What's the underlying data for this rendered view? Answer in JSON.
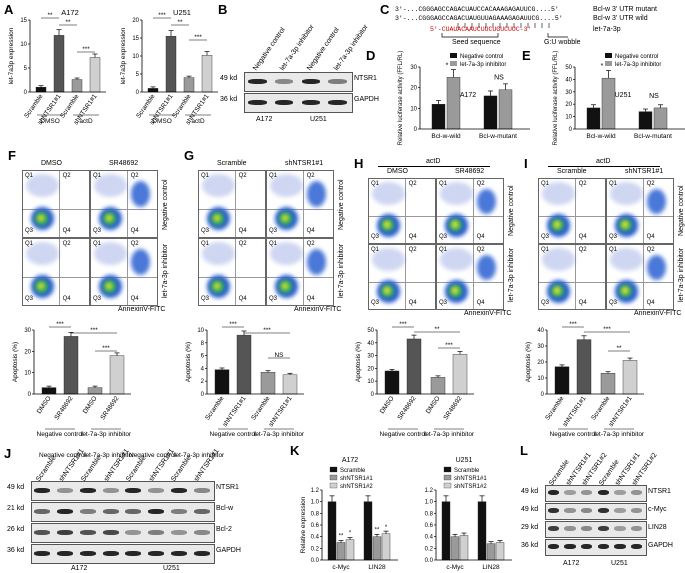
{
  "panels": {
    "A": {
      "letter": "A",
      "cell1": "A172",
      "cell2": "U251",
      "ylabel": "let-7a3p expression",
      "xlabels": [
        "Scramble",
        "shNTSR1#1",
        "Scramble",
        "shNTSR1#1"
      ],
      "groups": [
        "DMSO",
        "actD"
      ],
      "sig1": [
        "**",
        "**",
        "***"
      ],
      "sig2": [
        "***",
        "**",
        "***"
      ],
      "ticks1": [
        "0",
        "5",
        "10",
        "15"
      ],
      "ticks2": [
        "0",
        "5",
        "10",
        "15",
        "20"
      ]
    },
    "B": {
      "letter": "B",
      "lanes": [
        "Negative control",
        "let-7a-3p inhibitor",
        "Negative control",
        "let-7a-3p inhibitor"
      ],
      "rows": [
        "NTSR1",
        "GAPDH"
      ],
      "kd": [
        "49 kd",
        "36 kd"
      ],
      "cells": [
        "A172",
        "U251"
      ]
    },
    "C": {
      "letter": "C",
      "seq1": "3'-...CGGGAGCCAGACUAUCCACAAAGAGAUUCG....5'",
      "lab1": "Bcl-w 3' UTR mutant",
      "seq2": "3'-...CGGGAGCCAGACUAUGUUAGAAAGAGAUUCG....5'",
      "lab2": "Bcl-w 3' UTR wild",
      "seq3": "5'-CUAUACAAUCUUCUGUCUUC-3'",
      "lab3": "let-7a-3p",
      "seed": "Seed sequence",
      "wobble": "G:U wobble"
    },
    "D": {
      "letter": "D",
      "cell": "A172",
      "ylabel": "Relative luciferase activity (FFL/RL)",
      "legend": [
        "Negative control",
        "let-7a-3p inhibitor"
      ],
      "x": [
        "Bcl-w-wild",
        "Bcl-w-mutant"
      ],
      "sig": [
        "*",
        "NS"
      ],
      "ticks": [
        "0",
        "10",
        "20",
        "30"
      ]
    },
    "E": {
      "letter": "E",
      "cell": "U251",
      "ylabel": "Relative luciferase activity (FFL/RL)",
      "legend": [
        "Negative control",
        "let-7a-3p inhibitor"
      ],
      "x": [
        "Bcl-w-wild",
        "Bcl-w-mutant"
      ],
      "sig": [
        "*",
        "NS"
      ],
      "ticks": [
        "0",
        "10",
        "20",
        "30",
        "40",
        "50"
      ]
    },
    "F": {
      "letter": "F",
      "cols": [
        "DMSO",
        "SR48692"
      ],
      "rows": [
        "Negative control",
        "let-7a-3p inhibitor"
      ],
      "axis": "AnnexinV-FITC",
      "ylabel": "Apoptosis (%)",
      "x": [
        "DMSO",
        "SR48692",
        "DMSO",
        "SR48692"
      ],
      "groups": [
        "Negative control",
        "let-7a-3p inhibitor"
      ],
      "sig": [
        "***",
        "***",
        "***"
      ],
      "ticks": [
        "0",
        "10",
        "20",
        "30"
      ]
    },
    "G": {
      "letter": "G",
      "cols": [
        "Scramble",
        "shNTSR1#1"
      ],
      "rows": [
        "Negative control",
        "let-7a-3p inhibitor"
      ],
      "axis": "AnnexinV-FITC",
      "ylabel": "Apoptosis (%)",
      "x": [
        "Scramble",
        "shNTSR1#1",
        "Scramble",
        "shNTSR1#1"
      ],
      "groups": [
        "Negative control",
        "let-7a-3p inhibitor"
      ],
      "sig": [
        "***",
        "***",
        "NS"
      ],
      "ticks": [
        "0",
        "2",
        "4",
        "6",
        "8",
        "10"
      ]
    },
    "H": {
      "letter": "H",
      "top": "actD",
      "cols": [
        "DMSO",
        "SR48692"
      ],
      "rows": [
        "Negative control",
        "let-7a-3p inhibitor"
      ],
      "axis": "AnnexinV-FITC",
      "ylabel": "Apoptosis (%)",
      "x": [
        "DMSO",
        "SR48692",
        "DMSO",
        "SR48692"
      ],
      "groups": [
        "Negative control",
        "let-7a-3p inhibitor"
      ],
      "sig": [
        "***",
        "**",
        "***"
      ],
      "ticks": [
        "0",
        "10",
        "20",
        "30",
        "40",
        "50"
      ]
    },
    "I": {
      "letter": "I",
      "top": "actD",
      "cols": [
        "Scramble",
        "shNTSR1#1"
      ],
      "rows": [
        "Negative control",
        "let-7a-3p inhibitor"
      ],
      "axis": "AnnexinV-FITC",
      "ylabel": "Apoptosis (%)",
      "x": [
        "Scramble",
        "shNTSR1#1",
        "Scramble",
        "shNTSR1#1"
      ],
      "groups": [
        "Negative control",
        "let-7a-3p inhibitor"
      ],
      "sig": [
        "***",
        "***",
        "**"
      ],
      "ticks": [
        "0",
        "10",
        "20",
        "30",
        "40"
      ]
    },
    "J": {
      "letter": "J",
      "groups": [
        "Negative control",
        "let-7a-3p inhibitor",
        "Negative control",
        "let-7a-3p inhibitor"
      ],
      "lanes": [
        "Scramble",
        "shNTSR1#1",
        "Scramble",
        "shNTSR1#1",
        "Scramble",
        "shNTSR1#1",
        "Scramble",
        "shNTSR1#1"
      ],
      "rows": [
        "NTSR1",
        "Bcl-w",
        "Bcl-2",
        "GAPDH"
      ],
      "kd": [
        "49 kd",
        "21 kd",
        "26 kd",
        "36 kd"
      ],
      "cells": [
        "A172",
        "U251"
      ]
    },
    "K": {
      "letter": "K",
      "cell1": "A172",
      "cell2": "U251",
      "ylabel": "Relative expression",
      "legend": [
        "Scramble",
        "shNTSR1#1",
        "shNTSR1#2"
      ],
      "x": [
        "c-Myc",
        "LIN28"
      ],
      "sig": [
        "**",
        "*",
        "**",
        "*"
      ],
      "ticks": [
        "0.0",
        "0.2",
        "0.4",
        "0.6",
        "0.8",
        "1.0",
        "1.2"
      ]
    },
    "L": {
      "letter": "L",
      "lanes": [
        "Scramble",
        "shNTSR1#1",
        "shNTSR1#2",
        "Scramble",
        "shNTSR1#1",
        "shNTSR1#2"
      ],
      "rows": [
        "NTSR1",
        "c-Myc",
        "LIN28",
        "GAPDH"
      ],
      "kd": [
        "49 kd",
        "49 kd",
        "29 kd",
        "36 kd"
      ],
      "cells": [
        "A172",
        "U251"
      ]
    }
  },
  "flow_quadrants": [
    "Q1",
    "Q2",
    "Q3",
    "Q4"
  ],
  "colors": {
    "black": "#111111",
    "dark": "#555555",
    "gray": "#9a9a9a",
    "light": "#d0d0d0"
  },
  "chart_data": [
    {
      "id": "A-A172",
      "type": "bar",
      "title": "A172",
      "categories": [
        "Scramble DMSO",
        "shNTSR1#1 DMSO",
        "Scramble actD",
        "shNTSR1#1 actD"
      ],
      "values": [
        1,
        11.8,
        2.6,
        7.2
      ],
      "ylim": [
        0,
        15
      ],
      "ylabel": "let-7a3p expression"
    },
    {
      "id": "A-U251",
      "type": "bar",
      "title": "U251",
      "categories": [
        "Scramble DMSO",
        "shNTSR1#1 DMSO",
        "Scramble actD",
        "shNTSR1#1 actD"
      ],
      "values": [
        1,
        15.5,
        4,
        10.2
      ],
      "ylim": [
        0,
        20
      ],
      "ylabel": "let-7a3p expression"
    },
    {
      "id": "D",
      "type": "bar",
      "title": "A172",
      "categories": [
        "Bcl-w-wild",
        "Bcl-w-mutant"
      ],
      "series": [
        {
          "name": "Negative control",
          "values": [
            12,
            16
          ]
        },
        {
          "name": "let-7a-3p inhibitor",
          "values": [
            25,
            19
          ]
        }
      ],
      "ylim": [
        0,
        30
      ]
    },
    {
      "id": "E",
      "type": "bar",
      "title": "U251",
      "categories": [
        "Bcl-w-wild",
        "Bcl-w-mutant"
      ],
      "series": [
        {
          "name": "Negative control",
          "values": [
            17,
            14
          ]
        },
        {
          "name": "let-7a-3p inhibitor",
          "values": [
            41,
            17
          ]
        }
      ],
      "ylim": [
        0,
        50
      ]
    },
    {
      "id": "F",
      "type": "bar",
      "categories": [
        "DMSO NC",
        "SR48692 NC",
        "DMSO inh",
        "SR48692 inh"
      ],
      "values": [
        3,
        27,
        3,
        18
      ],
      "ylim": [
        0,
        30
      ],
      "ylabel": "Apoptosis (%)"
    },
    {
      "id": "G",
      "type": "bar",
      "categories": [
        "Scramble NC",
        "shNTSR1#1 NC",
        "Scramble inh",
        "shNTSR1#1 inh"
      ],
      "values": [
        3.8,
        9.2,
        3.4,
        3.0
      ],
      "ylim": [
        0,
        10
      ],
      "ylabel": "Apoptosis (%)"
    },
    {
      "id": "H",
      "type": "bar",
      "categories": [
        "DMSO NC",
        "SR48692 NC",
        "DMSO inh",
        "SR48692 inh"
      ],
      "values": [
        18,
        43,
        13,
        31
      ],
      "ylim": [
        0,
        50
      ],
      "ylabel": "Apoptosis (%)"
    },
    {
      "id": "I",
      "type": "bar",
      "categories": [
        "Scramble NC",
        "shNTSR1#1 NC",
        "Scramble inh",
        "shNTSR1#1 inh"
      ],
      "values": [
        17,
        34,
        13,
        21
      ],
      "ylim": [
        0,
        40
      ],
      "ylabel": "Apoptosis (%)"
    },
    {
      "id": "K-A172",
      "type": "bar",
      "title": "A172",
      "categories": [
        "c-Myc",
        "LIN28"
      ],
      "series": [
        {
          "name": "Scramble",
          "values": [
            1.0,
            1.0
          ]
        },
        {
          "name": "shNTSR1#1",
          "values": [
            0.3,
            0.4
          ]
        },
        {
          "name": "shNTSR1#2",
          "values": [
            0.35,
            0.45
          ]
        }
      ],
      "ylim": [
        0,
        1.2
      ]
    },
    {
      "id": "K-U251",
      "type": "bar",
      "title": "U251",
      "categories": [
        "c-Myc",
        "LIN28"
      ],
      "series": [
        {
          "name": "Scramble",
          "values": [
            1.0,
            1.0
          ]
        },
        {
          "name": "shNTSR1#1",
          "values": [
            0.4,
            0.28
          ]
        },
        {
          "name": "shNTSR1#2",
          "values": [
            0.42,
            0.3
          ]
        }
      ],
      "ylim": [
        0,
        1.2
      ]
    }
  ]
}
